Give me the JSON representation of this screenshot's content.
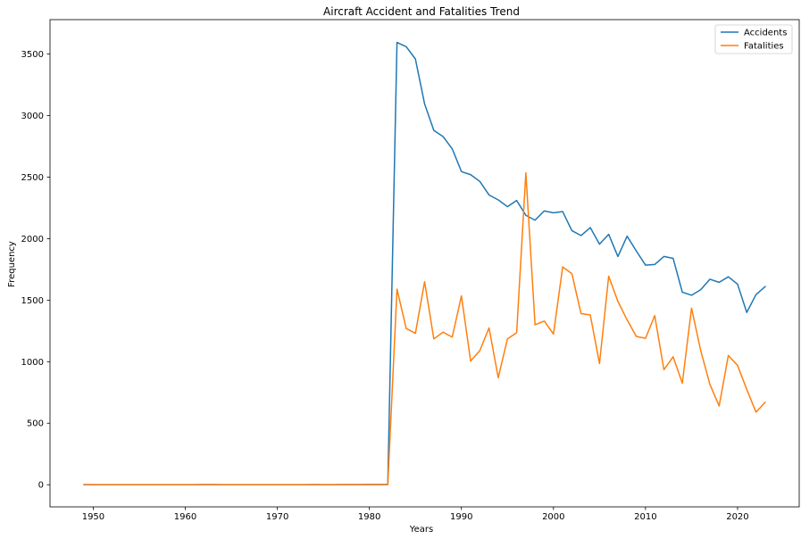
{
  "chart_data": {
    "type": "line",
    "title": "Aircraft Accident and Fatalities Trend",
    "xlabel": "Years",
    "ylabel": "Frequency",
    "xlim": [
      1945.3,
      1926.7
    ],
    "ylim": [
      -180,
      3780
    ],
    "xticks": [
      1950,
      1960,
      1970,
      1980,
      1990,
      2000,
      2010,
      2020
    ],
    "yticks": [
      0,
      500,
      1000,
      1500,
      2000,
      2500,
      3000,
      3500
    ],
    "legend_position": "top-right",
    "grid": false,
    "x": [
      1949,
      1950,
      1951,
      1952,
      1953,
      1954,
      1955,
      1956,
      1957,
      1958,
      1959,
      1960,
      1961,
      1962,
      1963,
      1964,
      1965,
      1966,
      1967,
      1968,
      1969,
      1970,
      1971,
      1972,
      1973,
      1974,
      1975,
      1976,
      1977,
      1978,
      1979,
      1980,
      1981,
      1982,
      1983,
      1984,
      1985,
      1986,
      1987,
      1988,
      1989,
      1990,
      1991,
      1992,
      1993,
      1994,
      1995,
      1996,
      1997,
      1998,
      1999,
      2000,
      2001,
      2002,
      2003,
      2004,
      2005,
      2006,
      2007,
      2008,
      2009,
      2010,
      2011,
      2012,
      2013,
      2014,
      2015,
      2016,
      2017,
      2018,
      2019,
      2020,
      2021,
      2022,
      2023
    ],
    "series": [
      {
        "name": "Accidents",
        "color": "#1f77b4",
        "values": [
          1,
          0,
          0,
          0,
          0,
          0,
          0,
          0,
          0,
          0,
          0,
          0,
          0,
          1,
          1,
          0,
          0,
          0,
          0,
          0,
          0,
          0,
          0,
          0,
          0,
          1,
          0,
          0,
          1,
          1,
          1,
          2,
          2,
          2,
          3595,
          3560,
          3460,
          3095,
          2880,
          2830,
          2730,
          2545,
          2520,
          2465,
          2355,
          2315,
          2260,
          2310,
          2190,
          2150,
          2225,
          2210,
          2220,
          2065,
          2025,
          2090,
          1955,
          2035,
          1855,
          2020,
          1900,
          1785,
          1790,
          1855,
          1840,
          1565,
          1540,
          1585,
          1670,
          1645,
          1690,
          1630,
          1400,
          1545,
          1610
        ]
      },
      {
        "name": "Fatalities",
        "color": "#ff7f0e",
        "values": [
          0,
          0,
          0,
          0,
          0,
          0,
          0,
          0,
          0,
          0,
          0,
          0,
          0,
          0,
          0,
          0,
          0,
          0,
          0,
          0,
          0,
          0,
          0,
          0,
          0,
          0,
          0,
          0,
          0,
          0,
          0,
          0,
          0,
          0,
          1590,
          1270,
          1230,
          1650,
          1185,
          1240,
          1200,
          1535,
          1005,
          1090,
          1275,
          870,
          1185,
          1235,
          2535,
          1300,
          1330,
          1225,
          1770,
          1715,
          1390,
          1380,
          985,
          1695,
          1490,
          1340,
          1205,
          1190,
          1375,
          935,
          1040,
          825,
          1435,
          1090,
          815,
          640,
          1050,
          970,
          775,
          590,
          670
        ]
      }
    ]
  }
}
